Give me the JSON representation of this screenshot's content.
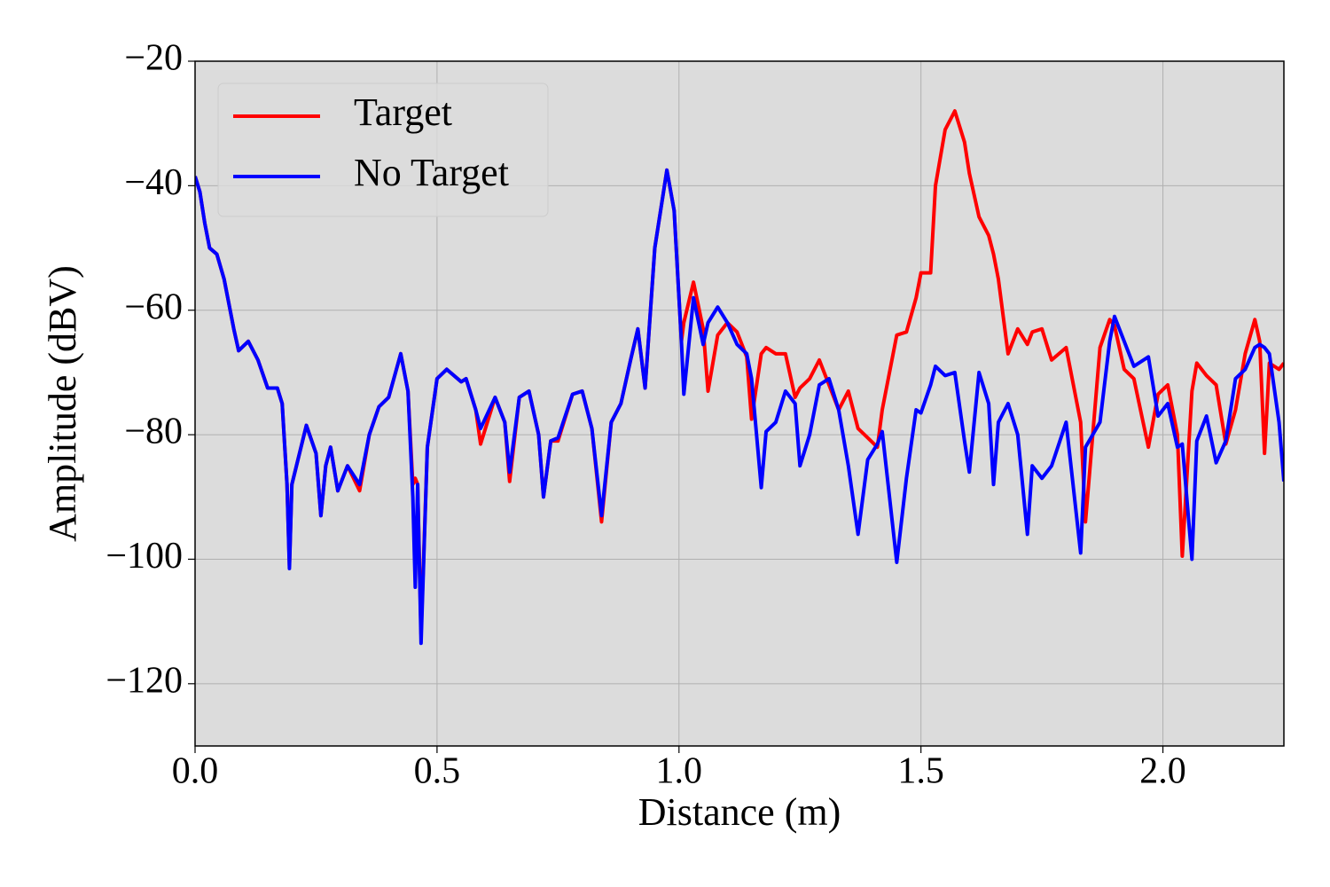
{
  "chart_data": {
    "type": "line",
    "x_label": "Distance (m)",
    "y_label": "Amplitude (dBV)",
    "xlim": [
      0,
      2.25
    ],
    "ylim": [
      -130,
      -20
    ],
    "xticks": [
      {
        "value": 0,
        "label": "0.0"
      },
      0.5,
      {
        "value": 1,
        "label": "1.0"
      },
      1.5,
      {
        "value": 2,
        "label": "2.0"
      }
    ],
    "yticks": [
      {
        "value": -120,
        "label": "−120"
      },
      {
        "value": -100,
        "label": "−100"
      },
      {
        "value": -80,
        "label": "−80"
      },
      {
        "value": -60,
        "label": "−60"
      },
      {
        "value": -40,
        "label": "−40"
      },
      {
        "value": -20,
        "label": "−20"
      }
    ],
    "grid": true,
    "legend": "upper left",
    "x": [
      0,
      0.01,
      0.02,
      0.03,
      0.045,
      0.06,
      0.08,
      0.09,
      0.11,
      0.13,
      0.15,
      0.17,
      0.18,
      0.19,
      0.195,
      0.2,
      0.23,
      0.25,
      0.26,
      0.27,
      0.28,
      0.295,
      0.315,
      0.34,
      0.36,
      0.38,
      0.4,
      0.425,
      0.44,
      0.45,
      0.455,
      0.46,
      0.467,
      0.48,
      0.5,
      0.52,
      0.55,
      0.56,
      0.58,
      0.59,
      0.62,
      0.64,
      0.65,
      0.67,
      0.69,
      0.71,
      0.72,
      0.735,
      0.75,
      0.78,
      0.8,
      0.82,
      0.84,
      0.86,
      0.88,
      0.9,
      0.915,
      0.93,
      0.95,
      0.975,
      0.99,
      1.005,
      1.01,
      1.03,
      1.05,
      1.06,
      1.08,
      1.1,
      1.12,
      1.14,
      1.15,
      1.17,
      1.18,
      1.2,
      1.22,
      1.24,
      1.25,
      1.27,
      1.29,
      1.31,
      1.33,
      1.35,
      1.37,
      1.39,
      1.41,
      1.42,
      1.45,
      1.47,
      1.49,
      1.5,
      1.52,
      1.53,
      1.55,
      1.57,
      1.59,
      1.6,
      1.62,
      1.64,
      1.65,
      1.66,
      1.68,
      1.7,
      1.72,
      1.73,
      1.75,
      1.77,
      1.8,
      1.83,
      1.84,
      1.87,
      1.89,
      1.9,
      1.92,
      1.94,
      1.97,
      1.99,
      2.01,
      2.03,
      2.04,
      2.06,
      2.07,
      2.09,
      2.11,
      2.13,
      2.15,
      2.17,
      2.19,
      2.2,
      2.21,
      2.22,
      2.24,
      2.25
    ],
    "series": [
      {
        "name": "Target",
        "color": "#ff0000",
        "values": [
          -38.5,
          -41,
          -46,
          -50,
          -51,
          -55,
          -63,
          -66.5,
          -65,
          -68,
          -72.5,
          -72.5,
          -75,
          -88,
          -101,
          -88,
          -78.5,
          -83,
          -93,
          -85,
          -82,
          -89,
          -85,
          -89,
          -80,
          -75.5,
          -74,
          -67,
          -73,
          -88,
          -87,
          -88,
          -112,
          -82,
          -71,
          -69.5,
          -71.5,
          -71,
          -76,
          -81.5,
          -74,
          -78,
          -87.5,
          -74,
          -73,
          -80,
          -90,
          -81,
          -81,
          -73.5,
          -73,
          -79,
          -94,
          -78,
          -75,
          -68,
          -63,
          -72.5,
          -50,
          -37.5,
          -44,
          -65,
          -62,
          -55.5,
          -63,
          -73,
          -64,
          -62,
          -63.5,
          -67.5,
          -77.5,
          -67,
          -66,
          -67,
          -67,
          -74,
          -72.5,
          -71,
          -68,
          -72,
          -76,
          -73,
          -79,
          -80.5,
          -82,
          -76,
          -64,
          -63.5,
          -58,
          -54,
          -54,
          -40,
          -31,
          -28,
          -33,
          -38,
          -45,
          -48,
          -51,
          -55,
          -67,
          -63,
          -65.5,
          -63.5,
          -63,
          -68,
          -66,
          -78,
          -94,
          -66,
          -61.5,
          -62.5,
          -69.5,
          -71,
          -82,
          -73.5,
          -72,
          -80,
          -99.5,
          -73,
          -68.5,
          -70.5,
          -72,
          -81.5,
          -76,
          -67,
          -61.5,
          -65,
          -83,
          -68.5,
          -69.5,
          -68.5
        ]
      },
      {
        "name": "No Target",
        "color": "#0000ff",
        "values": [
          -38.5,
          -41,
          -46,
          -50,
          -51,
          -55,
          -63,
          -66.5,
          -65,
          -68,
          -72.5,
          -72.5,
          -75,
          -88,
          -101.5,
          -88,
          -78.5,
          -83,
          -93,
          -85,
          -82,
          -89,
          -85,
          -88,
          -80,
          -75.5,
          -74,
          -67,
          -73,
          -90,
          -104.5,
          -88,
          -113.5,
          -82,
          -71,
          -69.5,
          -71.5,
          -71,
          -76,
          -79,
          -74,
          -78,
          -86,
          -74,
          -73,
          -80,
          -90,
          -81,
          -80.5,
          -73.5,
          -73,
          -79,
          -93,
          -78,
          -75,
          -68,
          -63,
          -72.5,
          -50,
          -37.5,
          -44,
          -65,
          -73.5,
          -58,
          -65.5,
          -62,
          -59.5,
          -62,
          -65.5,
          -67,
          -71,
          -88.5,
          -79.5,
          -78,
          -73,
          -75,
          -85,
          -80,
          -72,
          -71,
          -76,
          -85,
          -96,
          -84,
          -81.5,
          -79.5,
          -100.5,
          -87,
          -76,
          -76.5,
          -72,
          -69,
          -70.5,
          -70,
          -81,
          -86,
          -70,
          -75,
          -88,
          -78,
          -75,
          -80,
          -96,
          -85,
          -87,
          -85,
          -78,
          -99,
          -82,
          -78,
          -65,
          -61,
          -65,
          -69,
          -67.5,
          -77,
          -75,
          -82,
          -81.5,
          -100,
          -81,
          -77,
          -84.5,
          -81,
          -71,
          -69.5,
          -66,
          -65.5,
          -66,
          -67,
          -78,
          -87.5
        ]
      }
    ]
  }
}
